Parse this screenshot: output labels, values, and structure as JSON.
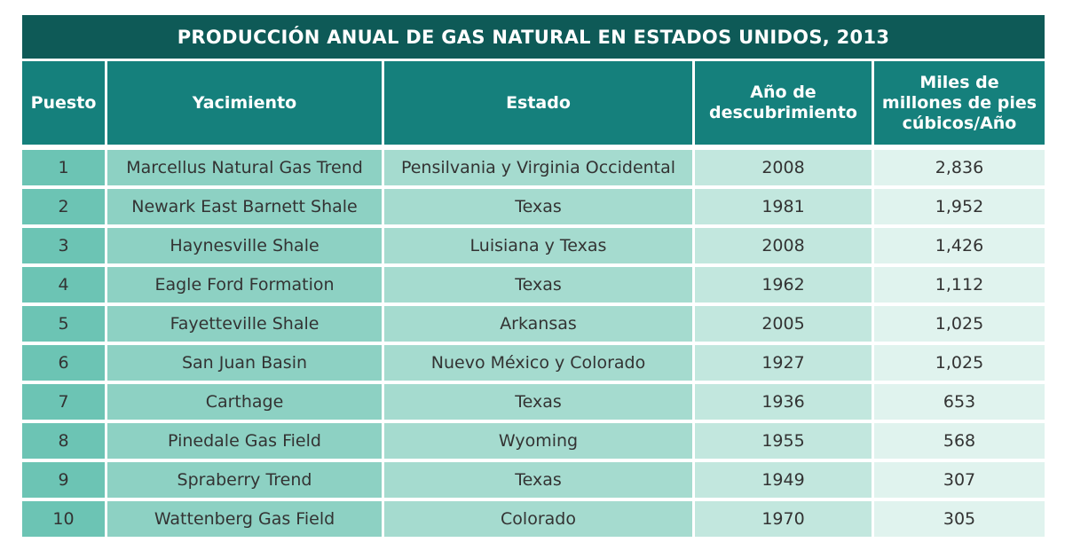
{
  "title": "PRODUCCIÓN ANUAL DE GAS NATURAL EN ESTADOS UNIDOS, 2013",
  "headers": {
    "rank": "Puesto",
    "field": "Yacimiento",
    "state": "Estado",
    "year_line1": "Año de",
    "year_line2": "descubrimiento",
    "prod_line1": "Miles de",
    "prod_line2": "millones de pies",
    "prod_line3": "cúbicos/Año"
  },
  "rows": [
    {
      "rank": "1",
      "field": "Marcellus Natural Gas Trend",
      "state": "Pensilvania y Virginia Occidental",
      "year": "2008",
      "production": "2,836"
    },
    {
      "rank": "2",
      "field": "Newark East Barnett Shale",
      "state": "Texas",
      "year": "1981",
      "production": "1,952"
    },
    {
      "rank": "3",
      "field": "Haynesville Shale",
      "state": "Luisiana y Texas",
      "year": "2008",
      "production": "1,426"
    },
    {
      "rank": "4",
      "field": "Eagle Ford Formation",
      "state": "Texas",
      "year": "1962",
      "production": "1,112"
    },
    {
      "rank": "5",
      "field": "Fayetteville Shale",
      "state": "Arkansas",
      "year": "2005",
      "production": "1,025"
    },
    {
      "rank": "6",
      "field": "San Juan Basin",
      "state": "Nuevo México y Colorado",
      "year": "1927",
      "production": "1,025"
    },
    {
      "rank": "7",
      "field": "Carthage",
      "state": "Texas",
      "year": "1936",
      "production": "653"
    },
    {
      "rank": "8",
      "field": "Pinedale Gas Field",
      "state": "Wyoming",
      "year": "1955",
      "production": "568"
    },
    {
      "rank": "9",
      "field": "Spraberry Trend",
      "state": "Texas",
      "year": "1949",
      "production": "307"
    },
    {
      "rank": "10",
      "field": "Wattenberg Gas Field",
      "state": "Colorado",
      "year": "1970",
      "production": "305"
    }
  ],
  "colors": {
    "title_bg": "#0e5a57",
    "header_bg": "#15807c",
    "col1_bg": "#6cc4b4",
    "col2_bg": "#8dd1c3",
    "col3_bg": "#a5dbcf",
    "col4_bg": "#c2e7de",
    "col5_bg": "#e0f3ee"
  }
}
